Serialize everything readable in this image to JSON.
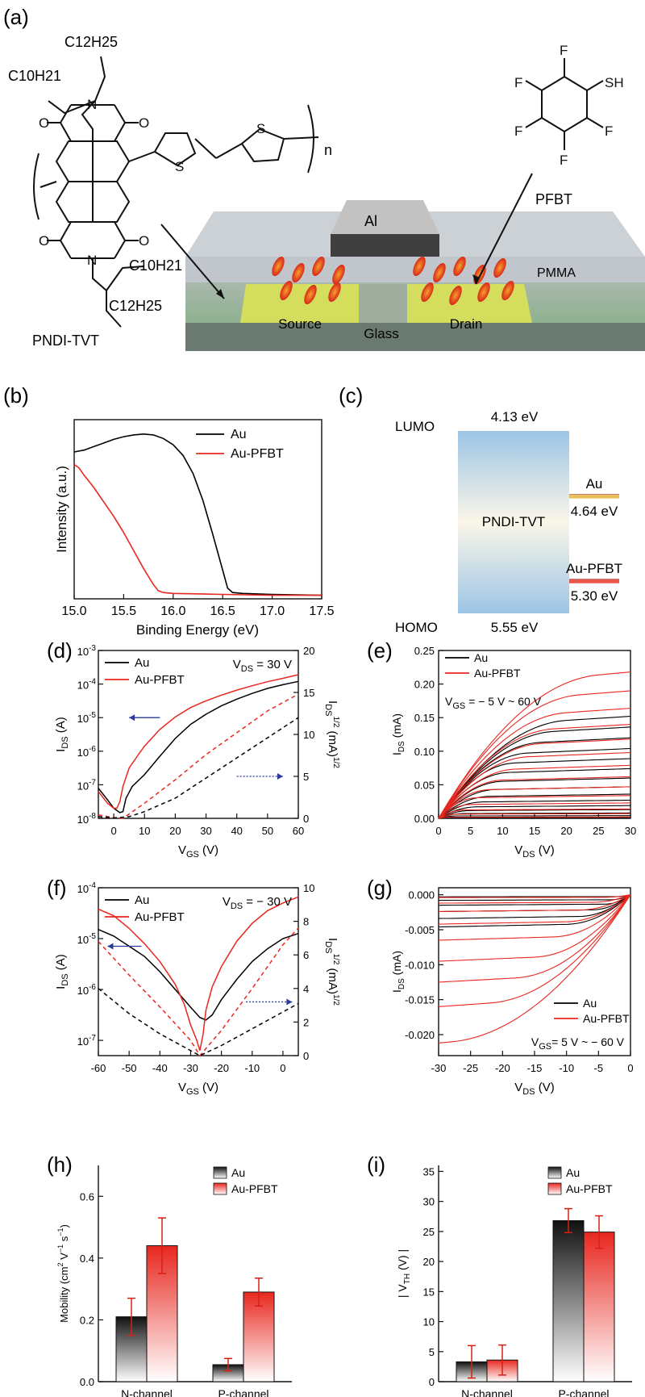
{
  "panel_labels": [
    "(a)",
    "(b)",
    "(c)",
    "(d)",
    "(e)",
    "(f)",
    "(g)",
    "(h)",
    "(i)"
  ],
  "panel_a": {
    "molecule_name": "PNDI-TVT",
    "side_chain_top_1": "C12H25",
    "side_chain_top_2": "C10H21",
    "side_chain_bottom_1": "C10H21",
    "side_chain_bottom_2": "C12H25",
    "repeat_label": "n",
    "pfbt_name": "PFBT",
    "pfbt_f": "F",
    "pfbt_sh": "SH",
    "device_labels": {
      "top_electrode": "Al",
      "dielectric": "PMMA",
      "source": "Source",
      "drain": "Drain",
      "substrate": "Glass"
    },
    "colors": {
      "semiconductor_layer": "#8bb98a",
      "electrodes": "#d8df59",
      "pmma": "#b9bec4",
      "al": "#4b4b4b",
      "molecules": "#e2411f"
    }
  },
  "chart_data": [
    {
      "id": "b",
      "type": "line",
      "xlabel": "Binding Energy (eV)",
      "ylabel": "Intensity (a.u.)",
      "xlim": [
        15.0,
        17.5
      ],
      "ylim": [
        0,
        1
      ],
      "x_ticks": [
        "15.0",
        "15.5",
        "16.0",
        "16.5",
        "17.0",
        "17.5"
      ],
      "legend_position": "top-right",
      "series": [
        {
          "name": "Au",
          "color": "#000000",
          "points": [
            [
              15.0,
              0.82
            ],
            [
              15.1,
              0.83
            ],
            [
              15.2,
              0.85
            ],
            [
              15.3,
              0.87
            ],
            [
              15.4,
              0.89
            ],
            [
              15.5,
              0.905
            ],
            [
              15.6,
              0.915
            ],
            [
              15.7,
              0.92
            ],
            [
              15.8,
              0.915
            ],
            [
              15.9,
              0.895
            ],
            [
              16.0,
              0.86
            ],
            [
              16.1,
              0.8
            ],
            [
              16.2,
              0.7
            ],
            [
              16.3,
              0.55
            ],
            [
              16.4,
              0.36
            ],
            [
              16.5,
              0.16
            ],
            [
              16.55,
              0.06
            ],
            [
              16.6,
              0.035
            ],
            [
              16.7,
              0.03
            ],
            [
              17.0,
              0.025
            ],
            [
              17.5,
              0.02
            ]
          ]
        },
        {
          "name": "Au-PFBT",
          "color": "#e8271f",
          "points": [
            [
              15.0,
              0.75
            ],
            [
              15.05,
              0.73
            ],
            [
              15.1,
              0.69
            ],
            [
              15.2,
              0.62
            ],
            [
              15.3,
              0.54
            ],
            [
              15.4,
              0.46
            ],
            [
              15.5,
              0.37
            ],
            [
              15.6,
              0.27
            ],
            [
              15.7,
              0.17
            ],
            [
              15.8,
              0.08
            ],
            [
              15.85,
              0.045
            ],
            [
              15.9,
              0.035
            ],
            [
              16.0,
              0.03
            ],
            [
              16.5,
              0.025
            ],
            [
              17.0,
              0.02
            ],
            [
              17.5,
              0.02
            ]
          ]
        }
      ]
    },
    {
      "id": "c",
      "type": "diagram",
      "lumo_label": "LUMO",
      "homo_label": "HOMO",
      "lumo_value": "4.13 eV",
      "homo_value": "5.55 eV",
      "semiconductor": "PNDI-TVT",
      "levels": [
        {
          "name": "Au",
          "value": "4.64 eV",
          "energy": 4.64,
          "color": "#e8c15a"
        },
        {
          "name": "Au-PFBT",
          "value": "5.30 eV",
          "energy": 5.3,
          "color": "#e8554a"
        }
      ],
      "energy_range": [
        4.13,
        5.55
      ]
    },
    {
      "id": "d",
      "type": "line",
      "xlabel": "VGS (V)",
      "ylabel_left": "IDS (A)",
      "ylabel_right": "IDS1/2 (mA)1/2",
      "annotation": "VDS = 30 V",
      "xlim": [
        -5,
        60
      ],
      "ylim_log": [
        -8,
        -3
      ],
      "ylim_right": [
        0,
        20
      ],
      "x_ticks": [
        "0",
        "10",
        "20",
        "30",
        "40",
        "50",
        "60"
      ],
      "y_ticks_left": [
        "10-8",
        "10-7",
        "10-6",
        "10-5",
        "10-4",
        "10-3"
      ],
      "y_ticks_right": [
        "0",
        "5",
        "10",
        "15",
        "20"
      ],
      "legend_position": "top-left",
      "series": [
        {
          "name": "Au",
          "color": "#000000",
          "axis": "left_log",
          "points": [
            [
              -5,
              -7.1
            ],
            [
              -2,
              -7.45
            ],
            [
              0,
              -7.7
            ],
            [
              2,
              -7.83
            ],
            [
              3,
              -7.8
            ],
            [
              4,
              -7.4
            ],
            [
              6,
              -7.05
            ],
            [
              10,
              -6.7
            ],
            [
              15,
              -6.15
            ],
            [
              20,
              -5.62
            ],
            [
              25,
              -5.2
            ],
            [
              30,
              -4.9
            ],
            [
              35,
              -4.65
            ],
            [
              40,
              -4.45
            ],
            [
              45,
              -4.28
            ],
            [
              50,
              -4.13
            ],
            [
              55,
              -4.02
            ],
            [
              60,
              -3.92
            ]
          ]
        },
        {
          "name": "Au-PFBT",
          "color": "#e8271f",
          "axis": "left_log",
          "points": [
            [
              -5,
              -7.2
            ],
            [
              -2,
              -7.55
            ],
            [
              0,
              -7.7
            ],
            [
              1,
              -7.7
            ],
            [
              2,
              -7.5
            ],
            [
              3,
              -7.05
            ],
            [
              5,
              -6.5
            ],
            [
              8,
              -6.1
            ],
            [
              10,
              -5.85
            ],
            [
              15,
              -5.35
            ],
            [
              20,
              -4.98
            ],
            [
              25,
              -4.7
            ],
            [
              30,
              -4.5
            ],
            [
              35,
              -4.33
            ],
            [
              40,
              -4.18
            ],
            [
              45,
              -4.05
            ],
            [
              50,
              -3.93
            ],
            [
              55,
              -3.83
            ],
            [
              60,
              -3.72
            ]
          ]
        },
        {
          "name": "",
          "color": "#e8271f",
          "axis": "right",
          "dashed": true,
          "points": [
            [
              -5,
              0.4
            ],
            [
              0,
              0.1
            ],
            [
              3,
              0
            ],
            [
              10,
              1.8
            ],
            [
              20,
              4.6
            ],
            [
              30,
              7.6
            ],
            [
              40,
              10.2
            ],
            [
              50,
              12.8
            ],
            [
              60,
              14.8
            ]
          ]
        },
        {
          "name": "",
          "color": "#000000",
          "axis": "right",
          "dashed": true,
          "points": [
            [
              -5,
              0.2
            ],
            [
              0,
              0.05
            ],
            [
              5,
              0.2
            ],
            [
              10,
              0.8
            ],
            [
              20,
              2.4
            ],
            [
              30,
              4.8
            ],
            [
              40,
              7.2
            ],
            [
              50,
              9.6
            ],
            [
              60,
              12.0
            ]
          ]
        }
      ],
      "arrows": [
        {
          "direction": "left",
          "x_from": 15,
          "x_to": 5,
          "y_log": -5.0,
          "color": "#2b3a9a"
        },
        {
          "direction": "right",
          "x_from": 40,
          "x_to": 55,
          "y_right": 5.0,
          "color": "#2b3a9a"
        }
      ]
    },
    {
      "id": "e",
      "type": "line",
      "xlabel": "VDS (V)",
      "ylabel": "IDS (mA)",
      "annotation": "VGS = − 5 V ~ 60 V",
      "xlim": [
        0,
        30
      ],
      "ylim": [
        0,
        0.25
      ],
      "x_ticks": [
        "0",
        "5",
        "10",
        "15",
        "20",
        "25",
        "30"
      ],
      "y_ticks": [
        "0.00",
        "0.05",
        "0.10",
        "0.15",
        "0.20",
        "0.25"
      ],
      "legend_position": "top-left",
      "legend": [
        {
          "name": "Au",
          "color": "#000000"
        },
        {
          "name": "Au-PFBT",
          "color": "#e8271f"
        }
      ],
      "curves_end_values": {
        "Au": [
          0.001,
          0.004,
          0.008,
          0.013,
          0.019,
          0.027,
          0.036,
          0.047,
          0.06,
          0.074,
          0.089,
          0.104,
          0.12,
          0.136,
          0.152
        ],
        "Au-PFBT": [
          0.002,
          0.007,
          0.014,
          0.023,
          0.034,
          0.047,
          0.062,
          0.079,
          0.098,
          0.118,
          0.14,
          0.164,
          0.19,
          0.218
        ]
      },
      "curves_vsat": {
        "Au": [
          2,
          3,
          4,
          5,
          6,
          7,
          8,
          9,
          10,
          11,
          12,
          14,
          16,
          18,
          20
        ],
        "Au-PFBT": [
          2,
          3,
          4,
          5,
          6,
          8,
          10,
          12,
          14,
          16,
          18,
          20,
          22,
          25
        ]
      }
    },
    {
      "id": "f",
      "type": "line",
      "xlabel": "VGS (V)",
      "ylabel_left": "IDS (A)",
      "ylabel_right": "IDS1/2 (mA)1/2",
      "annotation": "VDS = − 30 V",
      "xlim": [
        -60,
        5
      ],
      "ylim_log": [
        -7.3,
        -4
      ],
      "ylim_right": [
        0,
        10
      ],
      "x_ticks": [
        "-60",
        "-50",
        "-40",
        "-30",
        "-20",
        "-10",
        "0"
      ],
      "y_ticks_left": [
        "10-7",
        "10-6",
        "10-5",
        "10-4"
      ],
      "y_ticks_right": [
        "0",
        "2",
        "4",
        "6",
        "8",
        "10"
      ],
      "legend_position": "top-left",
      "series": [
        {
          "name": "Au",
          "color": "#000000",
          "axis": "left_log",
          "points": [
            [
              -60,
              -4.82
            ],
            [
              -55,
              -4.95
            ],
            [
              -50,
              -5.15
            ],
            [
              -45,
              -5.35
            ],
            [
              -40,
              -5.65
            ],
            [
              -35,
              -6.0
            ],
            [
              -30,
              -6.35
            ],
            [
              -27,
              -6.55
            ],
            [
              -25,
              -6.6
            ],
            [
              -23,
              -6.5
            ],
            [
              -20,
              -6.2
            ],
            [
              -15,
              -5.8
            ],
            [
              -10,
              -5.45
            ],
            [
              -5,
              -5.2
            ],
            [
              0,
              -5.0
            ],
            [
              5,
              -4.9
            ]
          ]
        },
        {
          "name": "Au-PFBT",
          "color": "#e8271f",
          "axis": "left_log",
          "points": [
            [
              -60,
              -4.42
            ],
            [
              -55,
              -4.55
            ],
            [
              -50,
              -4.8
            ],
            [
              -45,
              -5.1
            ],
            [
              -40,
              -5.45
            ],
            [
              -35,
              -5.9
            ],
            [
              -32,
              -6.3
            ],
            [
              -30,
              -6.7
            ],
            [
              -28,
              -7.0
            ],
            [
              -27,
              -7.2
            ],
            [
              -26,
              -6.9
            ],
            [
              -25,
              -6.4
            ],
            [
              -23,
              -5.95
            ],
            [
              -20,
              -5.55
            ],
            [
              -15,
              -5.05
            ],
            [
              -10,
              -4.7
            ],
            [
              -5,
              -4.45
            ],
            [
              0,
              -4.3
            ],
            [
              5,
              -4.18
            ]
          ]
        },
        {
          "name": "",
          "color": "#e8271f",
          "axis": "right",
          "dashed": true,
          "points": [
            [
              -60,
              6.8
            ],
            [
              -50,
              4.8
            ],
            [
              -40,
              2.9
            ],
            [
              -30,
              0.9
            ],
            [
              -27,
              0
            ],
            [
              -20,
              1.5
            ],
            [
              -10,
              4.0
            ],
            [
              0,
              6.6
            ],
            [
              5,
              7.6
            ]
          ]
        },
        {
          "name": "",
          "color": "#000000",
          "axis": "right",
          "dashed": true,
          "points": [
            [
              -60,
              4.0
            ],
            [
              -50,
              2.5
            ],
            [
              -40,
              1.3
            ],
            [
              -30,
              0.3
            ],
            [
              -27,
              0
            ],
            [
              -20,
              0.6
            ],
            [
              -10,
              1.6
            ],
            [
              0,
              2.6
            ],
            [
              5,
              3.1
            ]
          ]
        }
      ],
      "arrows": [
        {
          "direction": "left",
          "x_from": -46,
          "x_to": -57,
          "y_log": -5.15,
          "color": "#2b3a9a"
        },
        {
          "direction": "right",
          "x_from": -12,
          "x_to": 3,
          "y_right": 3.2,
          "color": "#2b3a9a"
        }
      ]
    },
    {
      "id": "g",
      "type": "line",
      "xlabel": "VDS (V)",
      "ylabel": "IDS (mA)",
      "annotation": "VGS= 5 V ~ − 60 V",
      "xlim": [
        -30,
        0
      ],
      "ylim": [
        -0.023,
        0.001
      ],
      "x_ticks": [
        "-30",
        "-25",
        "-20",
        "-15",
        "-10",
        "-5",
        "0"
      ],
      "y_ticks": [
        "0.000",
        "-0.005",
        "-0.010",
        "-0.015",
        "-0.020"
      ],
      "legend_position": "bottom-right",
      "legend": [
        {
          "name": "Au",
          "color": "#000000"
        },
        {
          "name": "Au-PFBT",
          "color": "#e8271f"
        }
      ],
      "curves_end_values": {
        "Au": [
          -0.0003,
          -0.0008,
          -0.0015,
          -0.0024,
          -0.0034,
          -0.0046
        ],
        "Au-PFBT": [
          -0.0004,
          -0.0012,
          -0.0024,
          -0.0042,
          -0.0065,
          -0.0095,
          -0.0125,
          -0.016,
          -0.0212
        ]
      },
      "curves_vsat": {
        "Au": [
          -2,
          -3,
          -4,
          -6,
          -8,
          -10
        ],
        "Au-PFBT": [
          -4,
          -6,
          -8,
          -10,
          -12,
          -15,
          -18,
          -22,
          -28
        ]
      }
    },
    {
      "id": "h",
      "type": "bar",
      "ylabel": "Mobility (cm2 V−1 s−1)",
      "categories": [
        "N-channel",
        "P-channel"
      ],
      "ylim": [
        0,
        0.7
      ],
      "y_ticks": [
        "0.0",
        "0.2",
        "0.4",
        "0.6"
      ],
      "legend_position": "top-right",
      "series": [
        {
          "name": "Au",
          "color": "#222222",
          "values": [
            0.21,
            0.055
          ],
          "errors": [
            0.06,
            0.02
          ]
        },
        {
          "name": "Au-PFBT",
          "color": "#e8271f",
          "values": [
            0.44,
            0.29
          ],
          "errors": [
            0.09,
            0.045
          ]
        }
      ]
    },
    {
      "id": "i",
      "type": "bar",
      "ylabel": "| VTH (V) |",
      "categories": [
        "N-channel",
        "P-channel"
      ],
      "ylim": [
        0,
        36
      ],
      "y_ticks": [
        "0",
        "5",
        "10",
        "15",
        "20",
        "25",
        "30",
        "35"
      ],
      "legend_position": "top-right",
      "series": [
        {
          "name": "Au",
          "color": "#222222",
          "values": [
            3.3,
            26.8
          ],
          "errors": [
            2.7,
            2.0
          ]
        },
        {
          "name": "Au-PFBT",
          "color": "#e8271f",
          "values": [
            3.6,
            24.9
          ],
          "errors": [
            2.5,
            2.7
          ]
        }
      ]
    }
  ]
}
